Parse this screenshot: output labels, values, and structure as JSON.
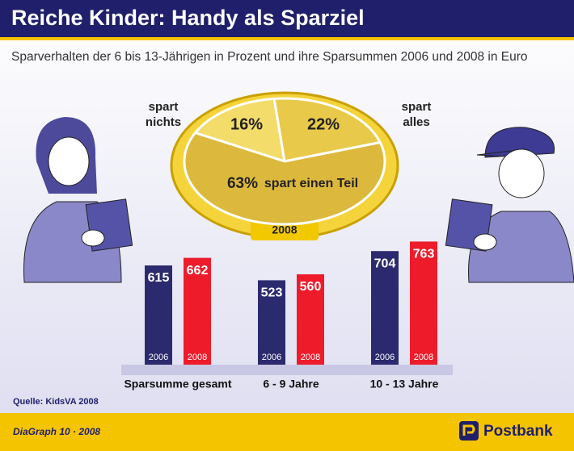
{
  "header": {
    "title": "Reiche Kinder: Handy als Sparziel",
    "subtitle": "Sparverhalten der 6 bis 13-Jährigen in Prozent und ihre Sparsummen 2006 und 2008 in Euro"
  },
  "chart_data": [
    {
      "type": "pie",
      "year": "2008",
      "categories": [
        "spart nichts",
        "spart alles",
        "spart einen Teil"
      ],
      "values": [
        16,
        22,
        63
      ],
      "value_labels": [
        "16%",
        "22%",
        "63%"
      ],
      "colors": [
        "#f3dc6a",
        "#e9c94a",
        "#dcb83c"
      ]
    },
    {
      "type": "bar",
      "categories": [
        "Sparsumme gesamt",
        "6 - 9 Jahre",
        "10 - 13 Jahre"
      ],
      "series": [
        {
          "name": "2006",
          "color": "#2b2a6e",
          "values": [
            615,
            523,
            704
          ]
        },
        {
          "name": "2008",
          "color": "#ee1c2b",
          "values": [
            662,
            560,
            763
          ]
        }
      ],
      "ylim": [
        0,
        900
      ]
    }
  ],
  "footer": {
    "source": "Quelle: KidsVA 2008",
    "credit": "DiaGraph 10 · 2008",
    "brand": "Postbank"
  }
}
